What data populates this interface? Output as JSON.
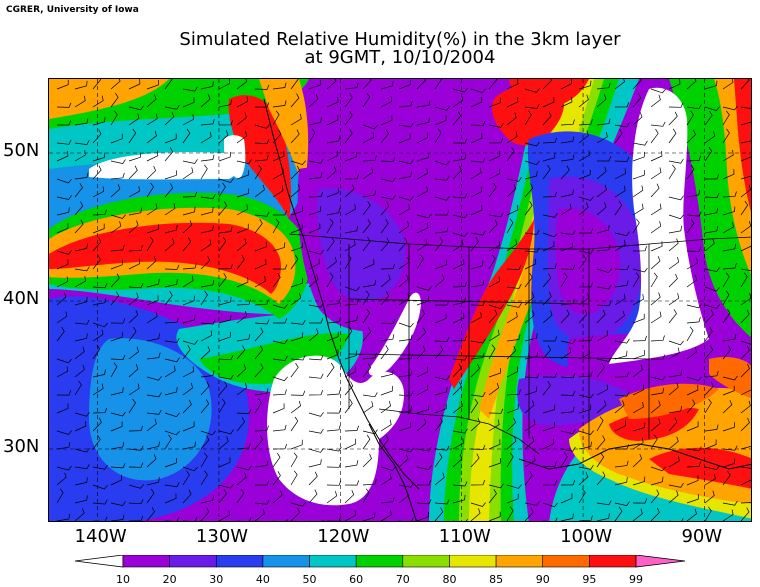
{
  "credit": "CGRER, University of Iowa",
  "title_line1": "Simulated Relative Humidity(%) in the 3km layer",
  "title_line2": "at 9GMT, 10/10/2004",
  "lat_labels": [
    {
      "id": "50",
      "text": "50N",
      "value": 50
    },
    {
      "id": "40",
      "text": "40N",
      "value": 40
    },
    {
      "id": "30",
      "text": "30N",
      "value": 30
    }
  ],
  "lon_labels": [
    {
      "id": "140",
      "text": "140W",
      "value": -140
    },
    {
      "id": "130",
      "text": "130W",
      "value": -130
    },
    {
      "id": "120",
      "text": "120W",
      "value": -120
    },
    {
      "id": "110",
      "text": "110W",
      "value": -110
    },
    {
      "id": "100",
      "text": "100W",
      "value": -100
    },
    {
      "id": "90",
      "text": "90W",
      "value": -90
    }
  ],
  "legend": {
    "ticks": [
      "10",
      "20",
      "30",
      "40",
      "50",
      "60",
      "70",
      "80",
      "85",
      "90",
      "95",
      "99"
    ],
    "colors": [
      "#ffffff",
      "#9a00d8",
      "#6a1be8",
      "#2a3cf0",
      "#1692e8",
      "#00c6c6",
      "#00d200",
      "#8ade00",
      "#e6e600",
      "#ffa400",
      "#ff6a00",
      "#ff1010",
      "#ff60c8"
    ]
  },
  "map": {
    "lon_range": [
      -144,
      -86
    ],
    "lat_range": [
      25,
      55
    ],
    "field_colors": {
      "purple": "#9a00d8",
      "violet": "#6a1be8",
      "blue": "#2a3cf0",
      "sky": "#1692e8",
      "cyan": "#00c6c6",
      "green": "#00d200",
      "lime": "#8ade00",
      "yellow": "#e6e600",
      "orange": "#ffa400",
      "darkorange": "#ff6a00",
      "red": "#ff1010",
      "white": "#ffffff"
    }
  }
}
